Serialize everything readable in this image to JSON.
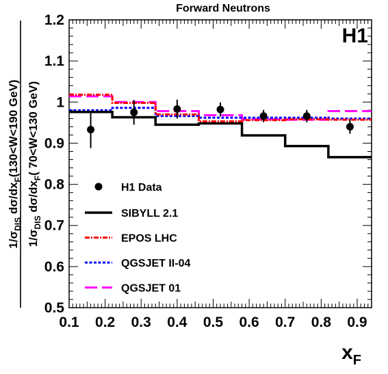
{
  "chart_data": {
    "type": "line",
    "title": "Forward Neutrons",
    "experiment_label": "H1",
    "xlabel": {
      "main": "x",
      "sub": "F"
    },
    "ylabel": {
      "numerator": [
        {
          "t": "1/σ"
        },
        {
          "t": "DIS",
          "sub": true
        },
        {
          "t": " dσ/dx"
        },
        {
          "t": "F",
          "sub": true
        },
        {
          "t": "(130<W<190 GeV)"
        }
      ],
      "denominator": [
        {
          "t": "1/σ"
        },
        {
          "t": "DIS",
          "sub": true
        },
        {
          "t": " dσ/dx"
        },
        {
          "t": "F",
          "sub": true
        },
        {
          "t": "( 70<W<130 GeV)"
        }
      ]
    },
    "xlim": [
      0.1,
      0.94
    ],
    "ylim": [
      0.5,
      1.2
    ],
    "xticks": [
      "0.1",
      "0.2",
      "0.3",
      "0.4",
      "0.5",
      "0.6",
      "0.7",
      "0.8",
      "0.9"
    ],
    "yticks": [
      "0.5",
      "0.6",
      "0.7",
      "0.8",
      "0.9",
      "1",
      "1.1",
      "1.2"
    ],
    "grid": false,
    "legend_position": "lower-left",
    "data_points": {
      "name": "H1 Data",
      "x": [
        0.16,
        0.28,
        0.4,
        0.52,
        0.64,
        0.76,
        0.88
      ],
      "y": [
        0.933,
        0.975,
        0.983,
        0.982,
        0.966,
        0.966,
        0.94
      ],
      "yerr": [
        0.045,
        0.03,
        0.023,
        0.017,
        0.015,
        0.015,
        0.017
      ]
    },
    "bin_edges": [
      0.1,
      0.22,
      0.34,
      0.46,
      0.58,
      0.7,
      0.82,
      0.94
    ],
    "series": [
      {
        "name": "SIBYLL 2.1",
        "values": [
          0.976,
          0.963,
          0.945,
          0.948,
          0.919,
          0.893,
          0.866
        ],
        "color": "#000000",
        "style": "solid"
      },
      {
        "name": "EPOS LHC",
        "values": [
          1.018,
          0.998,
          0.97,
          0.953,
          0.956,
          0.958,
          0.957
        ],
        "color": "#ff0000",
        "style": "dashdot"
      },
      {
        "name": "QGSJET II-04",
        "values": [
          0.98,
          0.986,
          0.966,
          0.962,
          0.962,
          0.962,
          0.96
        ],
        "color": "#0000ff",
        "style": "dotted"
      },
      {
        "name": "QGSJET 01",
        "values": [
          1.014,
          1.0,
          0.978,
          0.968,
          0.958,
          0.957,
          0.978
        ],
        "color": "#ff00ff",
        "style": "longdash"
      }
    ]
  }
}
